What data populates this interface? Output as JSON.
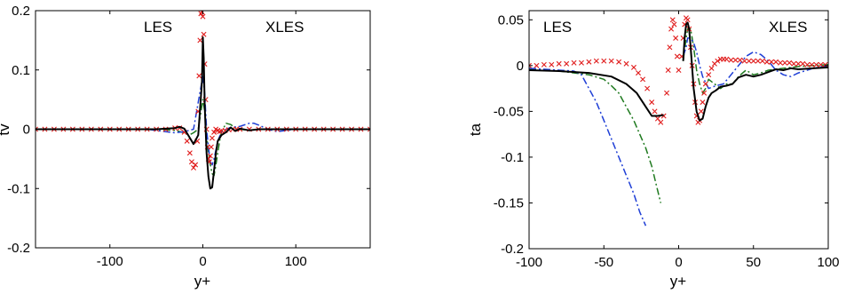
{
  "chart_data": [
    {
      "type": "line",
      "xlabel": "y+",
      "ylabel": "tv",
      "xlim": [
        -180,
        180
      ],
      "ylim": [
        -0.2,
        0.2
      ],
      "xticks": [
        "-100",
        "0",
        "100"
      ],
      "xtick_values": [
        -100,
        0,
        100
      ],
      "yticks": [
        "-0.2",
        "-0.1",
        "0",
        "0.1",
        "0.2"
      ],
      "ytick_values": [
        -0.2,
        -0.1,
        0,
        0.1,
        0.2
      ],
      "annotations": [
        "LES",
        "XLES"
      ],
      "grid": false,
      "series": [
        {
          "style": "solid",
          "color": "#000000",
          "x": [
            -180,
            -100,
            -50,
            -30,
            -25,
            -20,
            -15,
            -10,
            -5,
            -1,
            0,
            1,
            2,
            4,
            6,
            8,
            10,
            12,
            14,
            16,
            20,
            25,
            30,
            35,
            40,
            50,
            60,
            80,
            100,
            180
          ],
          "y": [
            0,
            0,
            0,
            0.002,
            0.004,
            0.001,
            -0.012,
            -0.025,
            -0.01,
            0.08,
            0.155,
            0.12,
            0.04,
            -0.04,
            -0.08,
            -0.1,
            -0.098,
            -0.07,
            -0.04,
            -0.02,
            -0.01,
            -0.005,
            0.003,
            -0.003,
            0.001,
            -0.002,
            0,
            0,
            0,
            0
          ]
        },
        {
          "style": "dashdot",
          "color": "#1f7a1f",
          "x": [
            -180,
            -100,
            -50,
            -30,
            -20,
            -15,
            -10,
            -5,
            0,
            2,
            4,
            6,
            8,
            10,
            12,
            14,
            16,
            18,
            20,
            25,
            30,
            35,
            40,
            50,
            60,
            80,
            180
          ],
          "y": [
            0,
            0,
            0,
            -0.002,
            -0.006,
            -0.01,
            -0.006,
            0,
            0.05,
            0.03,
            -0.01,
            -0.04,
            -0.06,
            -0.075,
            -0.078,
            -0.06,
            -0.04,
            -0.02,
            -0.005,
            0.01,
            0.008,
            0.002,
            0,
            -0.002,
            0,
            0,
            0
          ]
        },
        {
          "style": "dashdot",
          "color": "#1f3fd6",
          "x": [
            -180,
            -100,
            -60,
            -40,
            -30,
            -20,
            -10,
            0,
            2,
            4,
            6,
            8,
            10,
            12,
            14,
            16,
            20,
            25,
            30,
            40,
            50,
            55,
            60,
            70,
            80,
            100,
            180
          ],
          "y": [
            0,
            0,
            0,
            -0.004,
            -0.006,
            -0.004,
            0,
            0.09,
            0.06,
            0,
            -0.03,
            -0.055,
            -0.06,
            -0.05,
            -0.035,
            -0.02,
            -0.005,
            0,
            0.003,
            0.005,
            0.01,
            0.01,
            0.007,
            0,
            -0.004,
            0,
            0
          ]
        },
        {
          "style": "x-marker",
          "color": "#e01c1c",
          "x": [
            -180,
            -170,
            -160,
            -150,
            -140,
            -130,
            -120,
            -110,
            -100,
            -90,
            -80,
            -70,
            -60,
            -50,
            -40,
            -30,
            -25,
            -20,
            -17,
            -14,
            -12,
            -10,
            -8,
            -6,
            -5,
            -4,
            -3,
            -2,
            -1,
            0,
            1,
            2,
            3,
            4,
            5,
            6,
            7,
            8,
            9,
            10,
            12,
            14,
            16,
            18,
            20,
            24,
            28,
            32,
            36,
            40,
            50,
            60,
            70,
            80,
            90,
            100,
            110,
            120,
            130,
            140,
            150,
            160,
            170,
            180
          ],
          "y": [
            0,
            0,
            0,
            0,
            0,
            0,
            0,
            0,
            0,
            0,
            0,
            0,
            0,
            0,
            0,
            0.002,
            0.002,
            -0.005,
            -0.02,
            -0.04,
            -0.055,
            -0.065,
            -0.06,
            -0.02,
            0.03,
            0.09,
            0.15,
            0.195,
            0.198,
            0.19,
            0.16,
            0.11,
            0.05,
            0,
            -0.03,
            -0.05,
            -0.055,
            -0.045,
            -0.03,
            -0.015,
            -0.005,
            0,
            -0.002,
            -0.004,
            -0.003,
            -0.002,
            -0.001,
            0,
            0,
            0,
            0,
            0,
            0,
            0,
            0,
            0,
            0,
            0,
            0,
            0,
            0,
            0,
            0,
            0
          ]
        }
      ]
    },
    {
      "type": "line",
      "xlabel": "y+",
      "ylabel": "ta",
      "xlim": [
        -100,
        100
      ],
      "ylim": [
        -0.2,
        0.06
      ],
      "xticks": [
        "-100",
        "-50",
        "0",
        "50",
        "100"
      ],
      "xtick_values": [
        -100,
        -50,
        0,
        50,
        100
      ],
      "yticks": [
        "-0.2",
        "-0.15",
        "-0.1",
        "-0.05",
        "0",
        "0.05"
      ],
      "ytick_values": [
        -0.2,
        -0.15,
        -0.1,
        -0.05,
        0,
        0.05
      ],
      "annotations": [
        "LES",
        "XLES"
      ],
      "grid": false,
      "series": [
        {
          "style": "solid",
          "color": "#000000",
          "segments": [
            {
              "x": [
                -100,
                -80,
                -60,
                -45,
                -35,
                -28,
                -22,
                -18,
                -14,
                -10
              ],
              "y": [
                -0.005,
                -0.006,
                -0.008,
                -0.012,
                -0.02,
                -0.03,
                -0.045,
                -0.055,
                -0.055,
                -0.054
              ]
            },
            {
              "x": [
                3,
                4,
                5,
                6,
                7,
                8,
                10,
                12,
                14,
                16,
                18,
                20,
                22,
                25,
                28,
                32,
                36,
                40,
                45,
                50,
                55,
                60,
                65,
                70,
                75,
                80,
                90,
                100
              ],
              "y": [
                0.005,
                0.03,
                0.045,
                0.047,
                0.04,
                0.02,
                -0.025,
                -0.05,
                -0.06,
                -0.058,
                -0.045,
                -0.035,
                -0.03,
                -0.027,
                -0.023,
                -0.022,
                -0.02,
                -0.013,
                -0.01,
                -0.012,
                -0.01,
                -0.007,
                -0.004,
                -0.005,
                -0.003,
                -0.004,
                -0.003,
                -0.002
              ]
            }
          ]
        },
        {
          "style": "dashdot",
          "color": "#1f7a1f",
          "segments": [
            {
              "x": [
                -100,
                -80,
                -60,
                -50,
                -45,
                -40,
                -35,
                -30,
                -26,
                -22,
                -18,
                -15,
                -12
              ],
              "y": [
                -0.004,
                -0.006,
                -0.01,
                -0.015,
                -0.022,
                -0.03,
                -0.045,
                -0.06,
                -0.075,
                -0.09,
                -0.11,
                -0.13,
                -0.15
              ]
            },
            {
              "x": [
                3,
                5,
                6,
                8,
                10,
                12,
                14,
                16,
                18,
                20,
                24,
                28,
                32,
                36,
                40,
                45,
                50,
                55,
                60,
                70,
                80,
                90,
                100
              ],
              "y": [
                0.005,
                0.03,
                0.04,
                0.04,
                0.02,
                -0.005,
                -0.02,
                -0.03,
                -0.025,
                -0.015,
                -0.02,
                -0.025,
                -0.02,
                -0.02,
                -0.012,
                -0.005,
                -0.01,
                -0.008,
                -0.005,
                -0.003,
                -0.001,
                0,
                0.001
              ]
            }
          ]
        },
        {
          "style": "dashdot",
          "color": "#1f3fd6",
          "segments": [
            {
              "x": [
                -100,
                -80,
                -70,
                -65,
                -60,
                -55,
                -50,
                -45,
                -40,
                -35,
                -30,
                -26,
                -22
              ],
              "y": [
                -0.003,
                -0.005,
                -0.006,
                -0.01,
                -0.025,
                -0.04,
                -0.06,
                -0.08,
                -0.1,
                -0.12,
                -0.14,
                -0.16,
                -0.175
              ]
            },
            {
              "x": [
                3,
                5,
                6,
                8,
                10,
                12,
                14,
                16,
                20,
                25,
                30,
                35,
                40,
                45,
                50,
                55,
                60,
                65,
                70,
                75,
                80,
                90,
                100
              ],
              "y": [
                0.01,
                0.02,
                0.03,
                0.03,
                0.025,
                0.015,
                0,
                -0.012,
                -0.025,
                -0.022,
                -0.02,
                -0.01,
                0,
                0.01,
                0.015,
                0.012,
                0.005,
                -0.005,
                -0.01,
                -0.012,
                -0.008,
                -0.003,
                0
              ]
            }
          ]
        },
        {
          "style": "x-marker",
          "color": "#e01c1c",
          "x": [
            -100,
            -95,
            -90,
            -85,
            -80,
            -75,
            -70,
            -65,
            -60,
            -55,
            -50,
            -45,
            -40,
            -35,
            -30,
            -27,
            -24,
            -21,
            -18,
            -16,
            -14,
            -12,
            -10,
            -8,
            -7,
            -6,
            -5,
            -4,
            -3,
            -2,
            -1,
            0,
            2,
            3,
            4,
            5,
            6,
            7,
            8,
            9,
            10,
            11,
            12,
            13,
            14,
            15,
            16,
            17,
            18,
            20,
            22,
            24,
            26,
            28,
            30,
            32,
            35,
            38,
            41,
            44,
            47,
            50,
            53,
            56,
            59,
            62,
            65,
            68,
            71,
            74,
            77,
            80,
            83,
            86,
            89,
            92,
            95,
            98
          ],
          "y": [
            0,
            0,
            0.001,
            0.001,
            0.002,
            0.002,
            0.003,
            0.003,
            0.004,
            0.005,
            0.005,
            0.005,
            0.004,
            0.002,
            -0.002,
            -0.008,
            -0.015,
            -0.025,
            -0.04,
            -0.05,
            -0.058,
            -0.062,
            -0.055,
            -0.03,
            -0.005,
            0.02,
            0.04,
            0.05,
            0.045,
            0.03,
            0.01,
            -0.005,
            0.01,
            0.03,
            0.045,
            0.052,
            0.05,
            0.04,
            0.02,
            0,
            -0.02,
            -0.04,
            -0.055,
            -0.062,
            -0.06,
            -0.05,
            -0.04,
            -0.03,
            -0.02,
            -0.01,
            -0.003,
            0.002,
            0.005,
            0.007,
            0.007,
            0.007,
            0.006,
            0.006,
            0.006,
            0.005,
            0.005,
            0.005,
            0.005,
            0.005,
            0.004,
            0.004,
            0.004,
            0.003,
            0.003,
            0.003,
            0.002,
            0.002,
            0.002,
            0.001,
            0.001,
            0.001,
            0.001,
            0.001
          ]
        }
      ]
    }
  ]
}
